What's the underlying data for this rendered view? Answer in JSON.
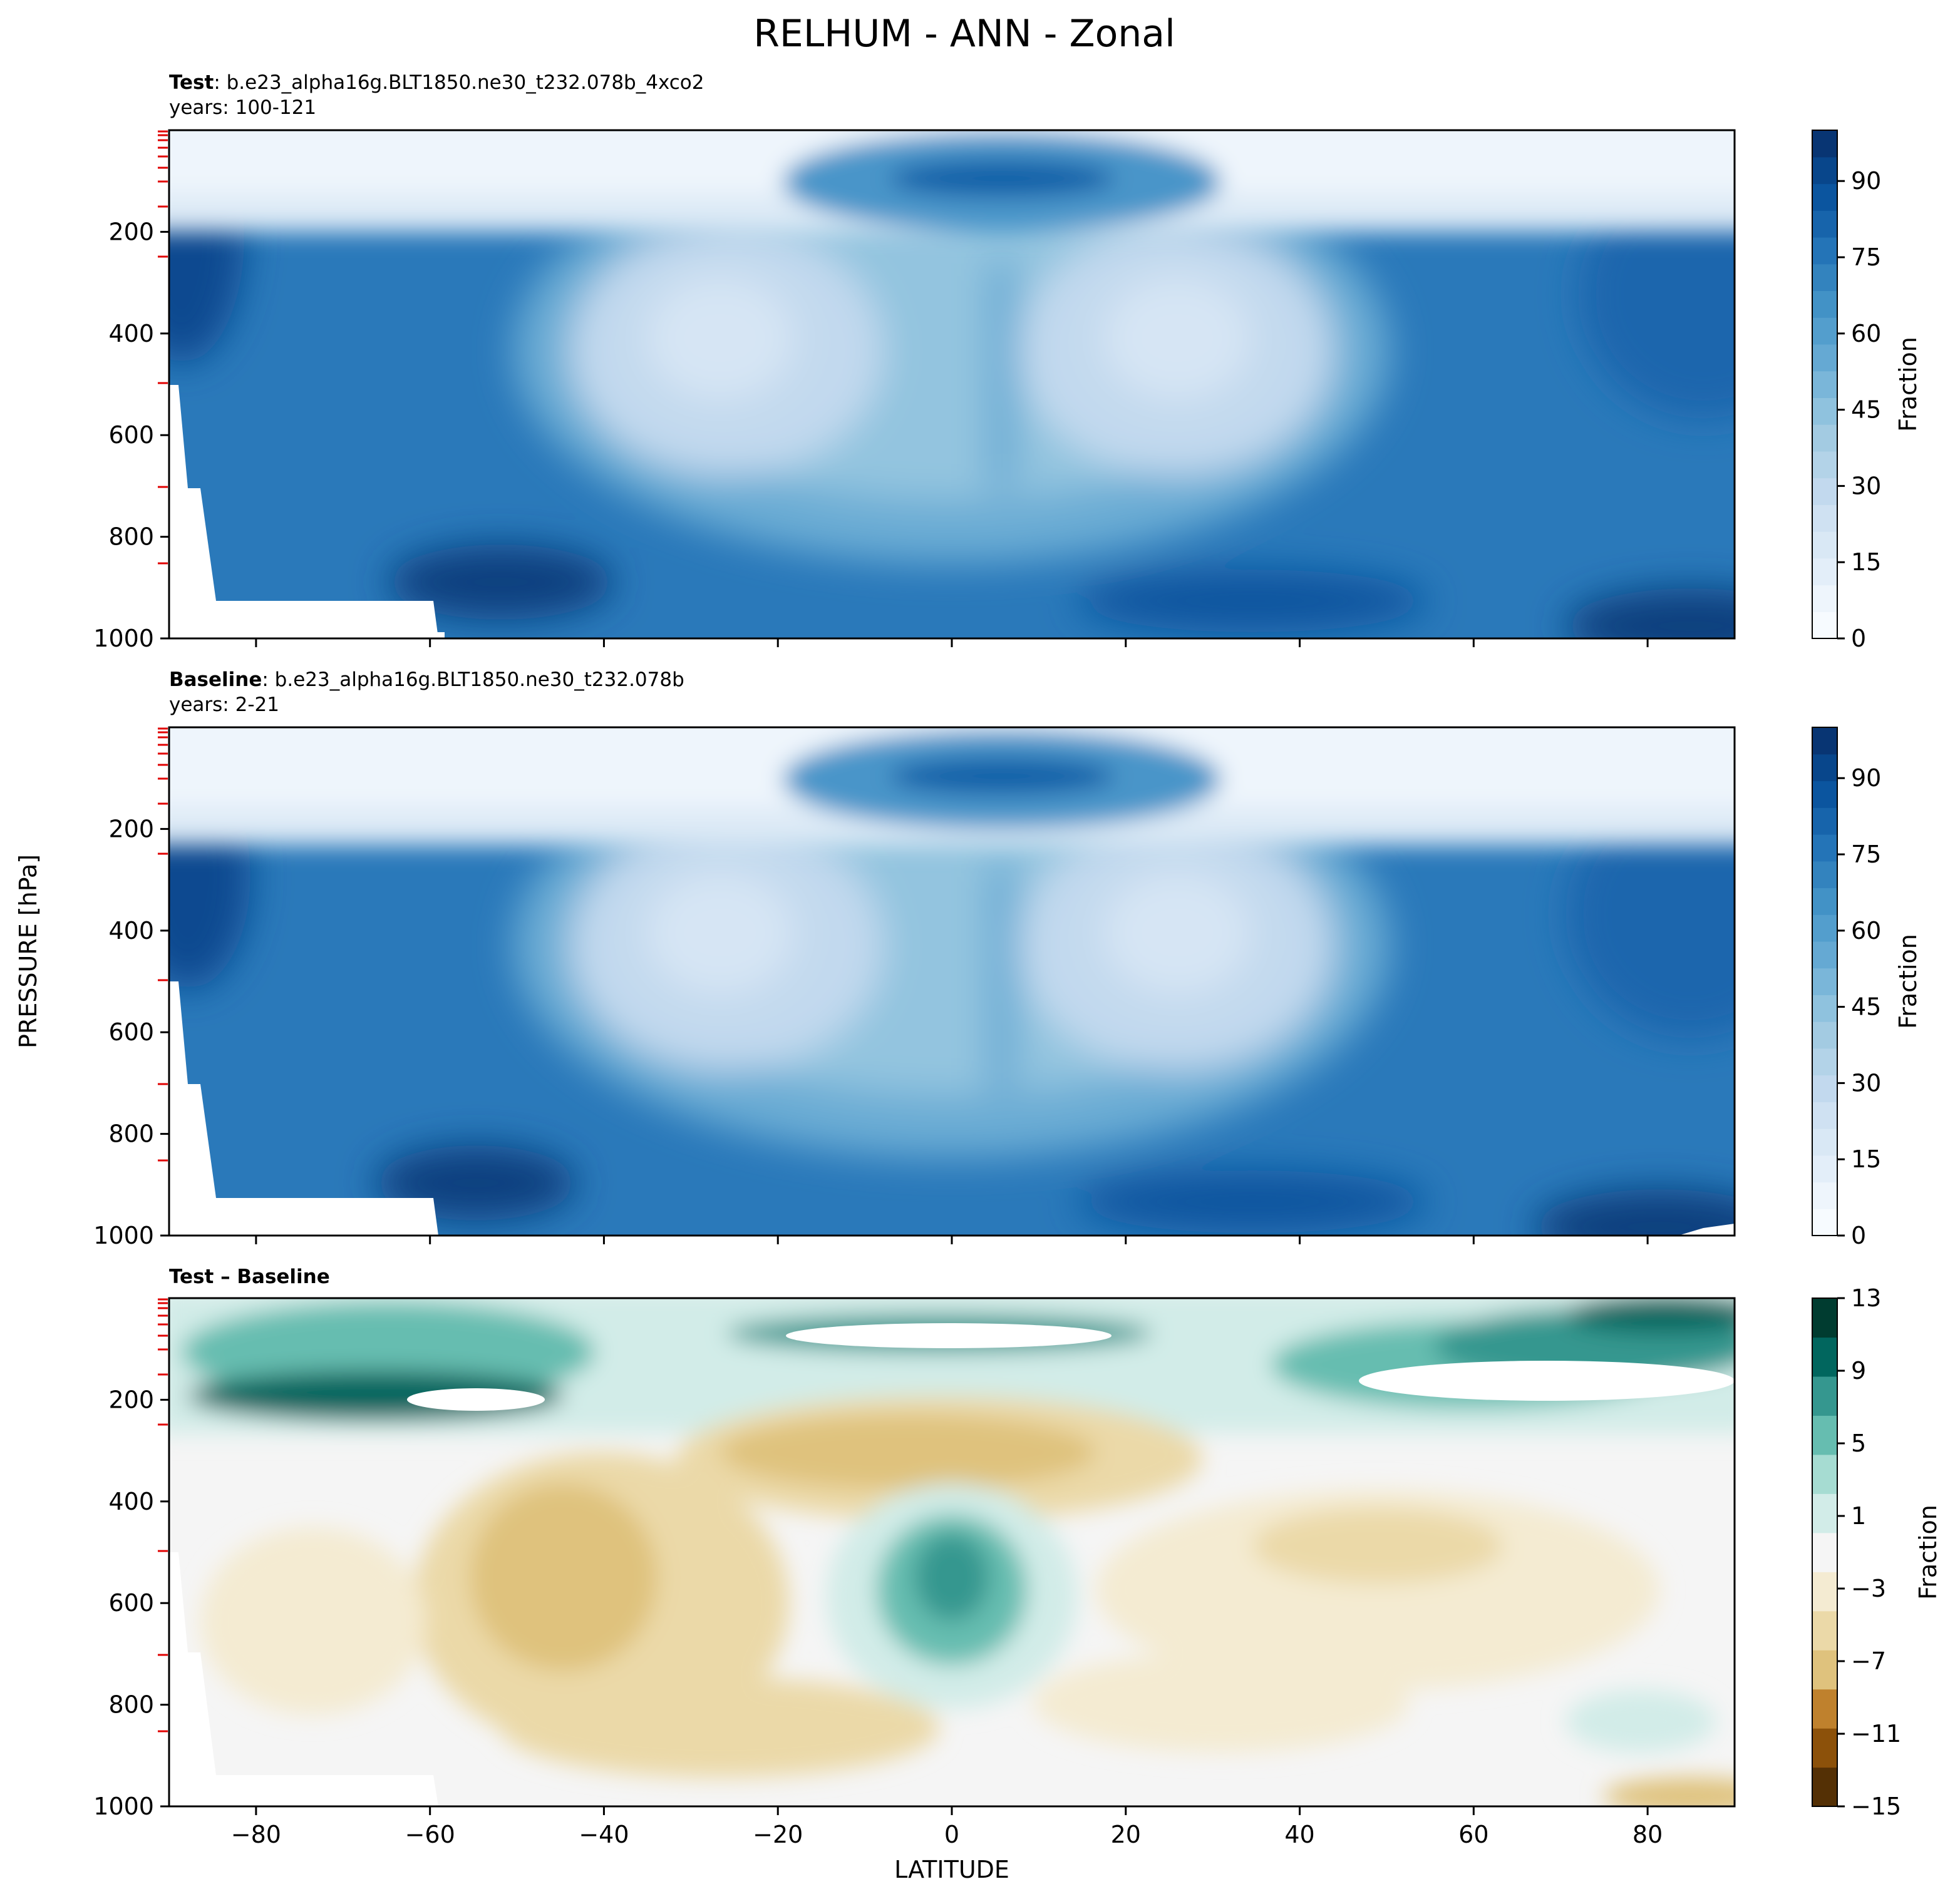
{
  "figure": {
    "title": "RELHUM - ANN - Zonal",
    "xlabel": "LATITUDE",
    "ylabel": "PRESSURE [hPa]"
  },
  "colors": {
    "blues": [
      "#f7fbff",
      "#eef5fc",
      "#e3eef9",
      "#d9e8f5",
      "#cfe1f2",
      "#c2d9ee",
      "#b3d3e8",
      "#a3cbe2",
      "#8fc2de",
      "#7ab6d9",
      "#65a9d3",
      "#539ecd",
      "#4292c6",
      "#3383be",
      "#2474b7",
      "#1764ab",
      "#0b559f",
      "#08468b",
      "#083573"
    ],
    "brbg": [
      "#543005",
      "#8c510a",
      "#bf812d",
      "#dfc27d",
      "#ebd9a8",
      "#f4ebd2",
      "#f5f5f5",
      "#d2ece8",
      "#a6dcd2",
      "#66bdb0",
      "#35978f",
      "#01665e",
      "#003c30"
    ]
  },
  "chart_data": [
    {
      "type": "contour",
      "header_bold": "Test",
      "header_text": ": b.e23_alpha16g.BLT1850.ne30_t232.078b_4xco2",
      "years": "years: 100-121",
      "xlim": [
        -90,
        90
      ],
      "ylim": [
        1000,
        0
      ],
      "xticks": [
        -80,
        -60,
        -40,
        -20,
        0,
        20,
        40,
        60,
        80
      ],
      "xtick_labels": [
        "−80",
        "−60",
        "−40",
        "−20",
        "0",
        "20",
        "40",
        "60",
        "80"
      ],
      "yticks": [
        200,
        400,
        600,
        800,
        1000
      ],
      "ytick_labels": [
        "200",
        "400",
        "600",
        "800",
        "1000"
      ],
      "colorbar": {
        "label": "Fraction",
        "min": 0,
        "max": 100,
        "ticks": [
          0,
          15,
          30,
          45,
          60,
          75,
          90
        ],
        "tick_labels": [
          "0",
          "15",
          "30",
          "45",
          "60",
          "75",
          "90"
        ],
        "scheme": "blues"
      }
    },
    {
      "type": "contour",
      "header_bold": "Baseline",
      "header_text": ": b.e23_alpha16g.BLT1850.ne30_t232.078b",
      "years": "years: 2-21",
      "xlim": [
        -90,
        90
      ],
      "ylim": [
        1000,
        0
      ],
      "xticks": [
        -80,
        -60,
        -40,
        -20,
        0,
        20,
        40,
        60,
        80
      ],
      "xtick_labels": [
        "−80",
        "−60",
        "−40",
        "−20",
        "0",
        "20",
        "40",
        "60",
        "80"
      ],
      "yticks": [
        200,
        400,
        600,
        800,
        1000
      ],
      "ytick_labels": [
        "200",
        "400",
        "600",
        "800",
        "1000"
      ],
      "colorbar": {
        "label": "Fraction",
        "min": 0,
        "max": 100,
        "ticks": [
          0,
          15,
          30,
          45,
          60,
          75,
          90
        ],
        "tick_labels": [
          "0",
          "15",
          "30",
          "45",
          "60",
          "75",
          "90"
        ],
        "scheme": "blues"
      }
    },
    {
      "type": "contour",
      "header_bold": "Test – Baseline",
      "header_text": "",
      "years": "",
      "xlim": [
        -90,
        90
      ],
      "ylim": [
        1000,
        0
      ],
      "xticks": [
        -80,
        -60,
        -40,
        -20,
        0,
        20,
        40,
        60,
        80
      ],
      "xtick_labels": [
        "−80",
        "−60",
        "−40",
        "−20",
        "0",
        "20",
        "40",
        "60",
        "80"
      ],
      "yticks": [
        200,
        400,
        600,
        800,
        1000
      ],
      "ytick_labels": [
        "200",
        "400",
        "600",
        "800",
        "1000"
      ],
      "colorbar": {
        "label": "Fraction",
        "min": -15,
        "max": 13,
        "ticks": [
          13,
          9,
          5,
          1,
          -3,
          -7,
          -11,
          -15
        ],
        "tick_labels": [
          "13",
          "9",
          "5",
          "1",
          "−3",
          "−7",
          "−11",
          "−15"
        ],
        "scheme": "brbg"
      }
    }
  ]
}
